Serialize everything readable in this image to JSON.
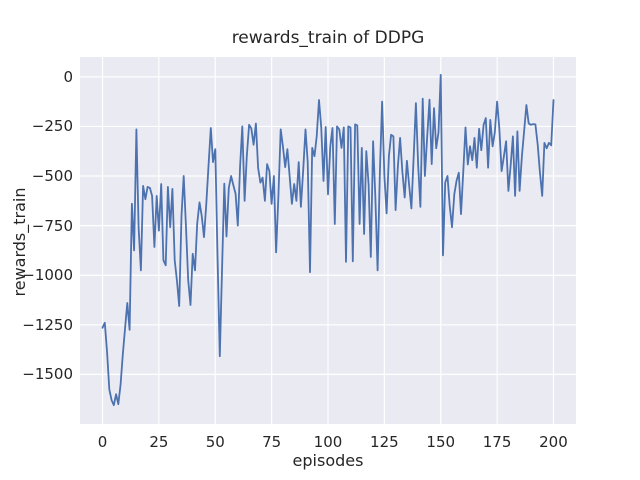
{
  "figure": {
    "background_color": "#ffffff",
    "axes_background_color": "#eaeaf2",
    "grid_color": "#ffffff",
    "text_color": "#262626",
    "line_color": "#4c72b0"
  },
  "chart_data": {
    "type": "line",
    "title": "rewards_train of DDPG",
    "xlabel": "episodes",
    "ylabel": "rewards_train",
    "legend": false,
    "grid": true,
    "xlim": [
      -10,
      210
    ],
    "ylim": [
      -1750,
      100
    ],
    "x_ticks": [
      0,
      25,
      50,
      75,
      100,
      125,
      150,
      175,
      200
    ],
    "x_tick_labels": [
      "0",
      "25",
      "50",
      "75",
      "100",
      "125",
      "150",
      "175",
      "200"
    ],
    "y_ticks": [
      0,
      -250,
      -500,
      -750,
      -1000,
      -1250,
      -1500
    ],
    "y_tick_labels": [
      "0",
      "−250",
      "−500",
      "−750",
      "−1000",
      "−1250",
      "−1500"
    ],
    "series": [
      {
        "name": "rewards_train",
        "color": "#4c72b0",
        "x_start": 0,
        "x_step": 1,
        "values": [
          -1265,
          -1240,
          -1390,
          -1575,
          -1630,
          -1655,
          -1600,
          -1650,
          -1550,
          -1400,
          -1265,
          -1140,
          -1275,
          -640,
          -875,
          -265,
          -758,
          -975,
          -550,
          -617,
          -555,
          -560,
          -600,
          -858,
          -600,
          -775,
          -540,
          -925,
          -950,
          -555,
          -758,
          -565,
          -925,
          -1025,
          -1155,
          -700,
          -500,
          -758,
          -1025,
          -1150,
          -892,
          -975,
          -740,
          -633,
          -700,
          -808,
          -640,
          -450,
          -258,
          -430,
          -365,
          -900,
          -1408,
          -980,
          -538,
          -805,
          -560,
          -500,
          -545,
          -590,
          -750,
          -450,
          -250,
          -625,
          -400,
          -242,
          -260,
          -342,
          -235,
          -458,
          -533,
          -508,
          -625,
          -440,
          -475,
          -640,
          -500,
          -885,
          -600,
          -265,
          -350,
          -455,
          -365,
          -505,
          -640,
          -540,
          -625,
          -430,
          -655,
          -470,
          -265,
          -430,
          -985,
          -358,
          -400,
          -300,
          -117,
          -253,
          -525,
          -253,
          -592,
          -350,
          -258,
          -742,
          -250,
          -265,
          -358,
          -255,
          -933,
          -250,
          -255,
          -930,
          -240,
          -245,
          -742,
          -358,
          -792,
          -375,
          -542,
          -908,
          -325,
          -600,
          -975,
          -475,
          -125,
          -500,
          -688,
          -400,
          -292,
          -300,
          -672,
          -450,
          -308,
          -480,
          -608,
          -423,
          -550,
          -663,
          -400,
          -133,
          -450,
          -655,
          -110,
          -500,
          -300,
          -115,
          -440,
          -158,
          -360,
          -280,
          10,
          -900,
          -533,
          -500,
          -650,
          -758,
          -592,
          -525,
          -483,
          -692,
          -475,
          -255,
          -442,
          -350,
          -420,
          -308,
          -458,
          -262,
          -370,
          -242,
          -208,
          -458,
          -217,
          -350,
          -280,
          -125,
          -258,
          -475,
          -400,
          -325,
          -575,
          -450,
          -300,
          -600,
          -275,
          -575,
          -400,
          -275,
          -142,
          -235,
          -242,
          -238,
          -240,
          -342,
          -480,
          -600,
          -333,
          -360,
          -333,
          -345,
          -117
        ]
      }
    ]
  }
}
